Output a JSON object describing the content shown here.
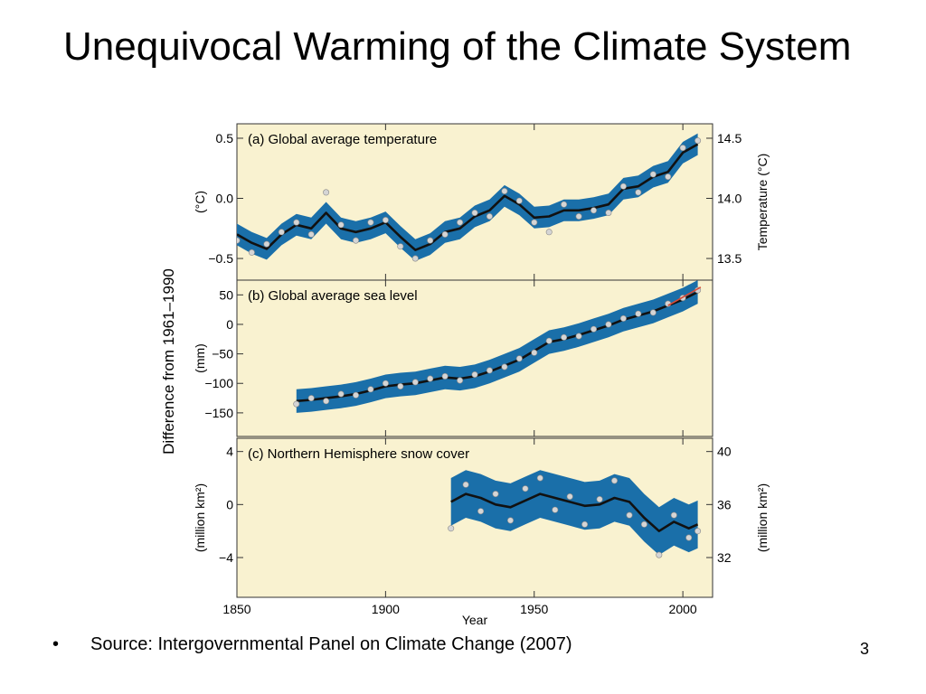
{
  "slide": {
    "title": "Unequivocal Warming of the Climate System",
    "bullet_symbol": "•",
    "source": "Source: Intergovernmental Panel on Climate Change (2007)",
    "page_number": "3"
  },
  "colors": {
    "panel_bg": "#f9f2d0",
    "band": "#1a6fa9",
    "line": "#111111",
    "points": "#d5d5d5",
    "recent_line": "#d94a36"
  },
  "chart_data": {
    "type": "line",
    "shared_ylabel": "Difference from 1961–1990",
    "xlabel": "Year",
    "xlim": [
      1850,
      2010
    ],
    "xticks": [
      1850,
      1900,
      1950,
      2000
    ],
    "panels": [
      {
        "id": "a",
        "title": "(a) Global average temperature",
        "ylabel": "(°C)",
        "right_label": "Temperature (°C)",
        "ylim": [
          -0.68,
          0.62
        ],
        "yticks": [
          {
            "v": 0.5,
            "l": "0.5"
          },
          {
            "v": 0.0,
            "l": "0.0"
          },
          {
            "v": -0.5,
            "l": "−0.5"
          }
        ],
        "right_ticks": [
          {
            "v": 0.5,
            "l": "14.5"
          },
          {
            "v": 0.0,
            "l": "14.0"
          },
          {
            "v": -0.5,
            "l": "13.5"
          }
        ],
        "band_halfwidth": 0.09,
        "x": [
          1850,
          1855,
          1860,
          1865,
          1870,
          1875,
          1880,
          1885,
          1890,
          1895,
          1900,
          1905,
          1910,
          1915,
          1920,
          1925,
          1930,
          1935,
          1940,
          1945,
          1950,
          1955,
          1960,
          1965,
          1970,
          1975,
          1980,
          1985,
          1990,
          1995,
          2000,
          2005
        ],
        "values": [
          -0.3,
          -0.37,
          -0.42,
          -0.3,
          -0.22,
          -0.25,
          -0.12,
          -0.25,
          -0.28,
          -0.25,
          -0.2,
          -0.32,
          -0.43,
          -0.38,
          -0.28,
          -0.25,
          -0.15,
          -0.1,
          0.02,
          -0.05,
          -0.16,
          -0.15,
          -0.1,
          -0.1,
          -0.08,
          -0.05,
          0.08,
          0.1,
          0.18,
          0.22,
          0.38,
          0.45
        ],
        "points": [
          -0.35,
          -0.45,
          -0.38,
          -0.28,
          -0.2,
          -0.3,
          0.05,
          -0.22,
          -0.35,
          -0.2,
          -0.18,
          -0.4,
          -0.5,
          -0.35,
          -0.3,
          -0.2,
          -0.12,
          -0.15,
          0.06,
          -0.02,
          -0.2,
          -0.28,
          -0.05,
          -0.15,
          -0.1,
          -0.12,
          0.1,
          0.05,
          0.2,
          0.18,
          0.42,
          0.48
        ]
      },
      {
        "id": "b",
        "title": "(b) Global average sea level",
        "ylabel": "(mm)",
        "ylim": [
          -190,
          75
        ],
        "yticks": [
          {
            "v": 50,
            "l": "50"
          },
          {
            "v": 0,
            "l": "0"
          },
          {
            "v": -50,
            "l": "−50"
          },
          {
            "v": -100,
            "l": "−100"
          },
          {
            "v": -150,
            "l": "−150"
          }
        ],
        "band_halfwidth": 20,
        "x": [
          1870,
          1875,
          1880,
          1885,
          1890,
          1895,
          1900,
          1905,
          1910,
          1915,
          1920,
          1925,
          1930,
          1935,
          1940,
          1945,
          1950,
          1955,
          1960,
          1965,
          1970,
          1975,
          1980,
          1985,
          1990,
          1995,
          2000,
          2005
        ],
        "values": [
          -130,
          -128,
          -125,
          -122,
          -118,
          -112,
          -105,
          -102,
          -100,
          -95,
          -90,
          -92,
          -88,
          -80,
          -70,
          -60,
          -45,
          -30,
          -25,
          -18,
          -10,
          -2,
          8,
          15,
          22,
          32,
          42,
          55
        ],
        "points": [
          -135,
          -125,
          -130,
          -118,
          -120,
          -110,
          -100,
          -105,
          -98,
          -92,
          -88,
          -95,
          -85,
          -78,
          -72,
          -58,
          -48,
          -28,
          -22,
          -20,
          -8,
          0,
          10,
          18,
          20,
          35,
          45,
          58
        ]
      },
      {
        "id": "c",
        "title": "(c) Northern Hemisphere snow cover",
        "ylabel": "(million km²)",
        "right_label": "(million km²)",
        "ylim": [
          -7,
          5
        ],
        "yticks": [
          {
            "v": 4,
            "l": "4"
          },
          {
            "v": 0,
            "l": "0"
          },
          {
            "v": -4,
            "l": "−4"
          }
        ],
        "right_ticks": [
          {
            "v": 4,
            "l": "40"
          },
          {
            "v": 0,
            "l": "36"
          },
          {
            "v": -4,
            "l": "32"
          }
        ],
        "band_halfwidth": 1.8,
        "x": [
          1922,
          1927,
          1932,
          1937,
          1942,
          1947,
          1952,
          1957,
          1962,
          1967,
          1972,
          1977,
          1982,
          1987,
          1992,
          1997,
          2002,
          2005
        ],
        "values": [
          0.2,
          0.8,
          0.5,
          0.0,
          -0.2,
          0.3,
          0.8,
          0.5,
          0.2,
          -0.1,
          0.0,
          0.5,
          0.2,
          -1.0,
          -2.0,
          -1.3,
          -1.8,
          -1.5
        ],
        "points": [
          -1.8,
          1.5,
          -0.5,
          0.8,
          -1.2,
          1.2,
          2.0,
          -0.4,
          0.6,
          -1.5,
          0.4,
          1.8,
          -0.8,
          -1.5,
          -3.8,
          -0.8,
          -2.5,
          -2.0
        ]
      }
    ]
  }
}
